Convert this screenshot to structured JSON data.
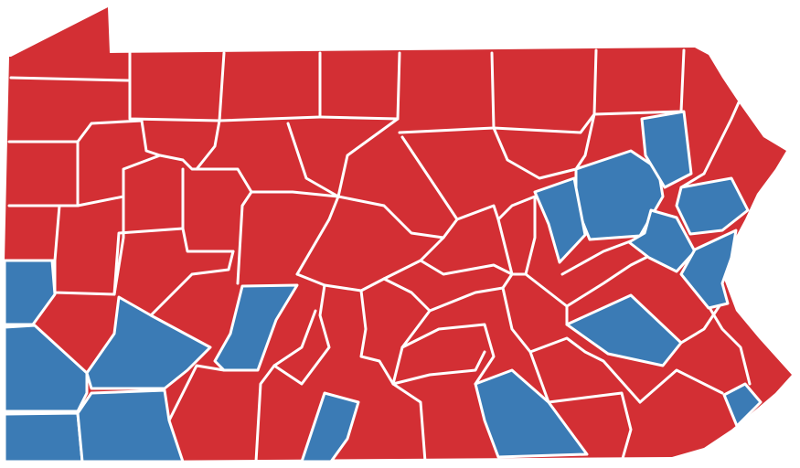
{
  "map": {
    "region": "Pennsylvania",
    "unit": "county",
    "colors": {
      "red": "#d32f34",
      "blue": "#3b7bb5",
      "border": "#ffffff",
      "background": "#ffffff"
    }
  }
}
